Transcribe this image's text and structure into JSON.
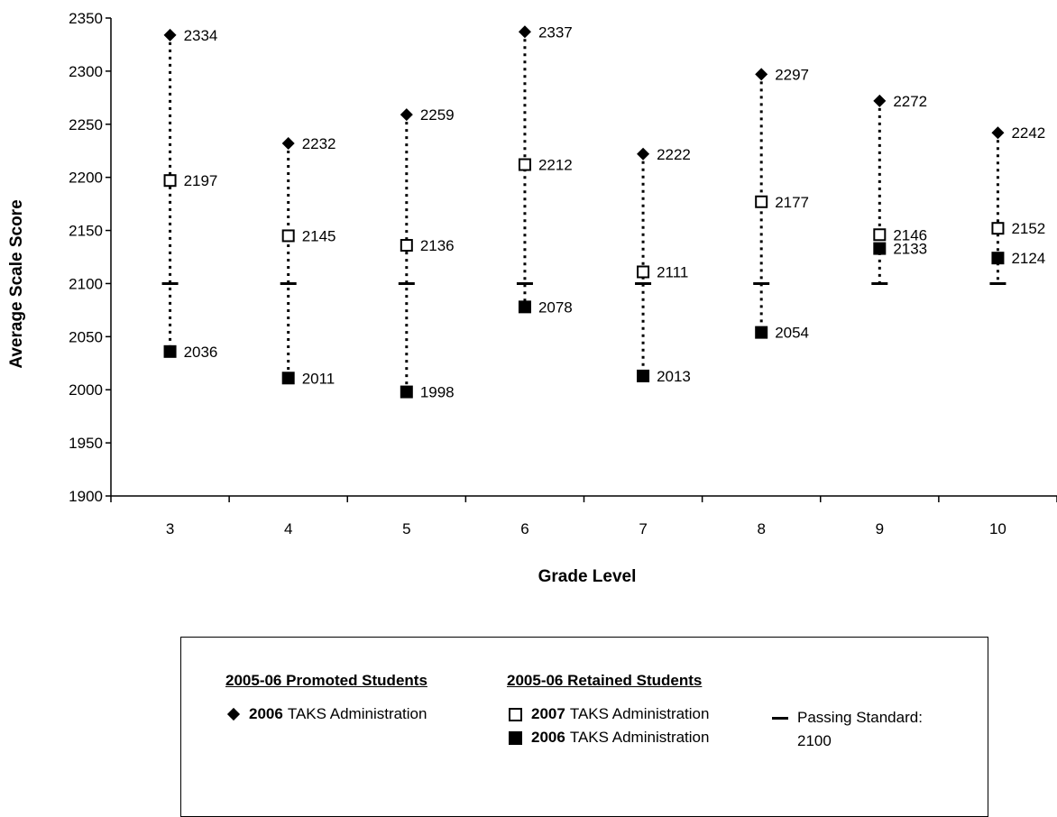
{
  "chart_data": {
    "type": "scatter",
    "categories": [
      "3",
      "4",
      "5",
      "6",
      "7",
      "8",
      "9",
      "10"
    ],
    "xlabel": "Grade Level",
    "ylabel": "Average Scale Score",
    "ylim": [
      1900,
      2350
    ],
    "yticks": [
      "1900",
      "1950",
      "2000",
      "2050",
      "2100",
      "2150",
      "2200",
      "2250",
      "2300",
      "2350"
    ],
    "grid": false,
    "passing_standard": 2100,
    "series": [
      {
        "key": "promoted_2006",
        "marker": "diamond",
        "values": [
          2334,
          2232,
          2259,
          2337,
          2222,
          2297,
          2272,
          2242
        ]
      },
      {
        "key": "retained_2007",
        "marker": "open-square",
        "values": [
          2197,
          2145,
          2136,
          2212,
          2111,
          2177,
          2146,
          2152
        ]
      },
      {
        "key": "retained_2006",
        "marker": "filled-square",
        "values": [
          2036,
          2011,
          1998,
          2078,
          2013,
          2054,
          2133,
          2124
        ]
      }
    ]
  },
  "legend": {
    "promoted_heading": "2005-06 Promoted Students",
    "retained_heading": "2005-06 Retained Students",
    "promoted_2006_year": "2006",
    "promoted_2006_text": "TAKS Administration",
    "retained_2007_year": "2007",
    "retained_2007_text": "TAKS Administration",
    "retained_2006_year": "2006",
    "retained_2006_text": "TAKS Administration",
    "passing_line1": "Passing Standard:",
    "passing_line2": "2100"
  }
}
